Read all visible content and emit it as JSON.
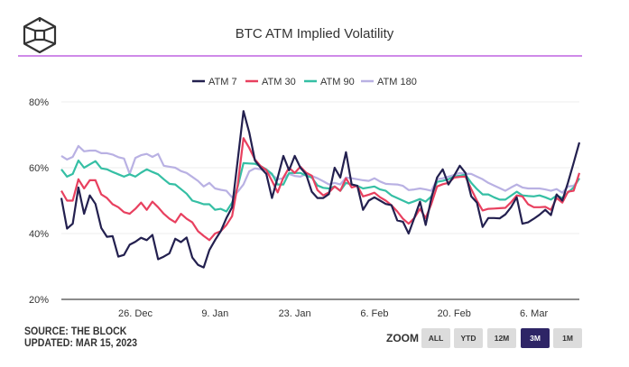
{
  "header": {
    "title": "BTC ATM Implied Volatility",
    "logo_name": "The Block logo"
  },
  "footer": {
    "source": "SOURCE: THE BLOCK",
    "updated": "UPDATED: MAR 15, 2023"
  },
  "zoom": {
    "label": "ZOOM",
    "buttons": [
      "ALL",
      "YTD",
      "12M",
      "3M",
      "1M"
    ],
    "active": "3M",
    "active_color": "#2e2566"
  },
  "chart_data": {
    "type": "line",
    "title": "BTC ATM Implied Volatility",
    "xlabel": "",
    "ylabel": "",
    "ylim": [
      20,
      80
    ],
    "yticks": [
      "20%",
      "40%",
      "60%",
      "80%"
    ],
    "ytick_values": [
      20,
      40,
      60,
      80
    ],
    "xticks": [
      "26. Dec",
      "9. Jan",
      "23. Jan",
      "6. Feb",
      "20. Feb",
      "6. Mar"
    ],
    "grid": true,
    "legend": "top-center",
    "x": [
      "13 Dec",
      "14 Dec",
      "15 Dec",
      "16 Dec",
      "17 Dec",
      "18 Dec",
      "19 Dec",
      "20 Dec",
      "21 Dec",
      "22 Dec",
      "23 Dec",
      "24 Dec",
      "25 Dec",
      "26 Dec",
      "27 Dec",
      "28 Dec",
      "29 Dec",
      "30 Dec",
      "31 Dec",
      "1 Jan",
      "2 Jan",
      "3 Jan",
      "4 Jan",
      "5 Jan",
      "6 Jan",
      "7 Jan",
      "8 Jan",
      "9 Jan",
      "10 Jan",
      "11 Jan",
      "12 Jan",
      "13 Jan",
      "14 Jan",
      "15 Jan",
      "16 Jan",
      "17 Jan",
      "18 Jan",
      "19 Jan",
      "20 Jan",
      "21 Jan",
      "22 Jan",
      "23 Jan",
      "24 Jan",
      "25 Jan",
      "26 Jan",
      "27 Jan",
      "28 Jan",
      "29 Jan",
      "30 Jan",
      "31 Jan",
      "1 Feb",
      "2 Feb",
      "3 Feb",
      "4 Feb",
      "5 Feb",
      "6 Feb",
      "7 Feb",
      "8 Feb",
      "9 Feb",
      "10 Feb",
      "11 Feb",
      "12 Feb",
      "13 Feb",
      "14 Feb",
      "15 Feb",
      "16 Feb",
      "17 Feb",
      "18 Feb",
      "19 Feb",
      "20 Feb",
      "21 Feb",
      "22 Feb",
      "23 Feb",
      "24 Feb",
      "25 Feb",
      "26 Feb",
      "27 Feb",
      "28 Feb",
      "1 Mar",
      "2 Mar",
      "3 Mar",
      "4 Mar",
      "5 Mar",
      "6 Mar",
      "7 Mar",
      "8 Mar",
      "9 Mar",
      "10 Mar",
      "11 Mar",
      "12 Mar",
      "13 Mar",
      "14 Mar"
    ],
    "series": [
      {
        "name": "ATM 7",
        "color": "#23204f",
        "values": [
          50.8,
          41.5,
          43,
          54,
          46,
          51.6,
          49,
          41.7,
          39,
          39.2,
          33,
          33.5,
          36.6,
          37.5,
          38.7,
          38,
          39.6,
          32.2,
          33,
          34,
          38.4,
          37.4,
          38.8,
          32.7,
          30.5,
          29.7,
          35,
          38,
          40.7,
          44.7,
          48,
          62.5,
          77.2,
          70.7,
          62.2,
          60,
          58.1,
          50.8,
          57,
          63.6,
          59.2,
          63.6,
          60,
          58,
          52.7,
          50.8,
          50.8,
          52,
          60,
          57,
          64.7,
          54.9,
          54.5,
          47.2,
          50,
          51,
          50,
          49,
          48.6,
          44,
          43.6,
          40,
          44.7,
          49.7,
          42.6,
          50.8,
          57,
          59.5,
          54.9,
          57.6,
          60.6,
          58.4,
          51.3,
          49.4,
          42,
          44.7,
          44.7,
          44.6,
          45.8,
          48,
          51,
          43,
          43.4,
          44.5,
          45.7,
          47.2,
          45.6,
          51.9,
          50,
          55.5,
          61.5,
          67.7
        ]
      },
      {
        "name": "ATM 30",
        "color": "#e8405f",
        "values": [
          53,
          50,
          50,
          56.5,
          53.7,
          56.2,
          56.2,
          51.9,
          50.8,
          48.9,
          48,
          46.5,
          46,
          47.5,
          49.4,
          47.2,
          49.7,
          48,
          46,
          44.5,
          43.4,
          46,
          44.5,
          43.4,
          40.7,
          39.3,
          38,
          40,
          40.7,
          42.6,
          45.3,
          55,
          69,
          66,
          62.5,
          60.5,
          59.3,
          56,
          52.5,
          57,
          60,
          58.4,
          60.3,
          58.5,
          57.6,
          53.2,
          51.6,
          52.5,
          54.3,
          53,
          56.8,
          54,
          54.5,
          51.3,
          51.8,
          52.4,
          51,
          50,
          48.6,
          46.7,
          44.5,
          43,
          44.7,
          47.5,
          44.7,
          49,
          54.3,
          55,
          55.4,
          57,
          57.2,
          57.3,
          53.5,
          50,
          47,
          47.5,
          47.6,
          47.7,
          47.8,
          49.5,
          51.6,
          51.3,
          48.9,
          48,
          48,
          48.1,
          47.2,
          50.8,
          49.4,
          52.7,
          53,
          58.4
        ]
      },
      {
        "name": "ATM 90",
        "color": "#35bfa4",
        "values": [
          59.5,
          57.3,
          58.1,
          62.2,
          60,
          61,
          62,
          59.8,
          59.5,
          58.7,
          58,
          57.3,
          58,
          57.3,
          58.5,
          59.5,
          58.7,
          58,
          56.5,
          55.1,
          54.9,
          53.5,
          52.1,
          50,
          49.5,
          48.9,
          48.9,
          47.2,
          47.5,
          46.7,
          49.4,
          54.3,
          61.4,
          61.3,
          61.2,
          60.5,
          59.5,
          58.1,
          54.9,
          54.9,
          58.4,
          58.4,
          58.4,
          57.6,
          57,
          54.6,
          53.9,
          53.7,
          54.3,
          53,
          55.4,
          54.9,
          54.5,
          53.7,
          54,
          54.3,
          53.4,
          53,
          51.6,
          50.8,
          50,
          49.2,
          49.8,
          50.5,
          49.7,
          51.3,
          55.7,
          56,
          56.5,
          57.3,
          57.6,
          57.9,
          55.4,
          53.5,
          51.9,
          51.9,
          51,
          50.3,
          50.3,
          51.5,
          52.7,
          51.6,
          51.4,
          51.3,
          51.6,
          51,
          50.3,
          51.6,
          50.8,
          52.5,
          54,
          56.8
        ]
      },
      {
        "name": "ATM 180",
        "color": "#b9b1e3",
        "values": [
          63.6,
          62.5,
          63.3,
          66.6,
          65,
          65.2,
          65.2,
          64.4,
          64.4,
          64,
          63.2,
          62.8,
          58.1,
          63,
          63.8,
          64.2,
          63.3,
          64.2,
          60.6,
          60.3,
          60,
          59,
          58.4,
          57.2,
          56,
          54.3,
          55.4,
          53.7,
          53.3,
          53,
          51,
          52.7,
          54.9,
          58.9,
          59.8,
          59.5,
          59.2,
          57.8,
          56.5,
          56.8,
          58.1,
          57.5,
          57.3,
          58.1,
          57.5,
          56.8,
          55.9,
          54.9,
          55.4,
          54.9,
          57,
          56.8,
          56.5,
          56.2,
          56,
          56.8,
          55.8,
          55.1,
          55,
          54.9,
          54.5,
          53.2,
          53.4,
          53.7,
          53.4,
          53,
          56.5,
          56.8,
          57.3,
          57.8,
          58.4,
          58.2,
          58.1,
          57.3,
          56.5,
          55.4,
          54.6,
          53.8,
          53,
          54,
          54.9,
          54,
          53.7,
          53.7,
          53.7,
          53.4,
          53,
          53.5,
          52.4,
          54.3,
          54.5,
          56.8
        ]
      }
    ]
  }
}
